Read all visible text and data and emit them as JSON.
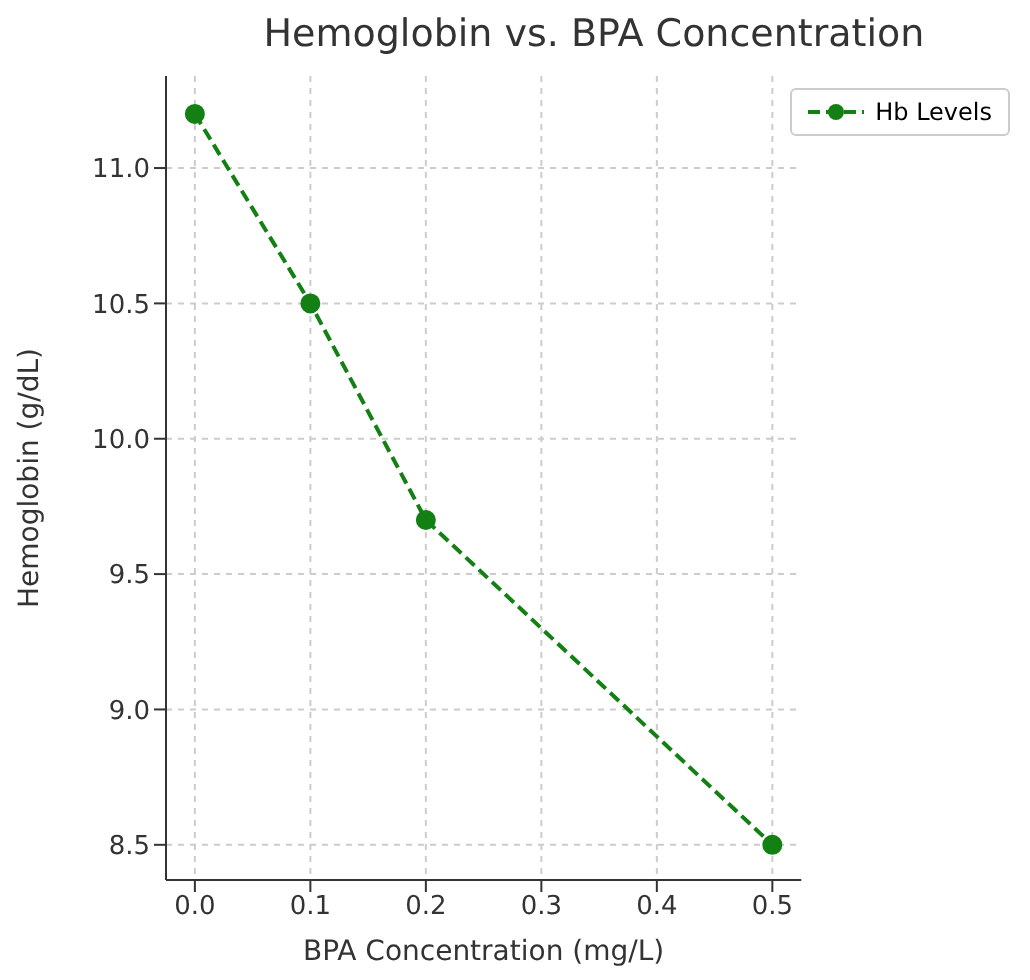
{
  "chart_data": {
    "type": "line",
    "title": "Hemoglobin vs. BPA Concentration",
    "xlabel": "BPA Concentration (mg/L)",
    "ylabel": "Hemoglobin (g/dL)",
    "x": [
      0,
      0.1,
      0.2,
      0.5
    ],
    "series": [
      {
        "name": "Hb Levels",
        "color": "#138013",
        "values": [
          11.2,
          10.5,
          9.7,
          8.5
        ]
      }
    ],
    "xlim": [
      -0.025,
      0.525
    ],
    "xticks": [
      {
        "value": 0,
        "label": "0.0"
      },
      0.1,
      0.2,
      0.3,
      0.4,
      0.5
    ],
    "ylim": [
      8.37,
      11.34
    ],
    "yticks": [
      8.5,
      {
        "value": 9,
        "label": "9.0"
      },
      9.5,
      {
        "value": 10,
        "label": "10.0"
      },
      10.5,
      {
        "value": 11,
        "label": "11.0"
      }
    ],
    "grid": true,
    "legend": "top right",
    "marker": "circle",
    "line_style": "dashed"
  }
}
